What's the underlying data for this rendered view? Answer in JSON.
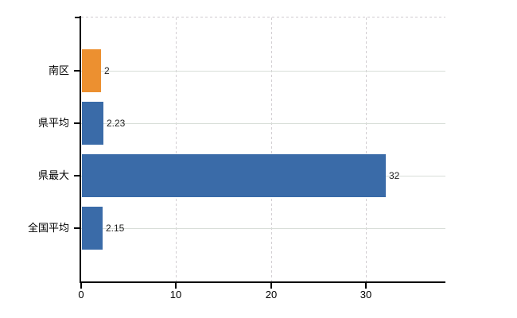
{
  "chart_data": {
    "type": "bar",
    "orientation": "horizontal",
    "title": "",
    "categories": [
      "南区",
      "県平均",
      "県最大",
      "全国平均"
    ],
    "values": [
      2,
      2.23,
      32,
      2.15
    ],
    "value_labels": [
      "2",
      "2.23",
      "32",
      "2.15"
    ],
    "point_colors": [
      "#EC9030",
      "#3A6BA8",
      "#3A6BA8",
      "#3A6BA8"
    ],
    "x_ticks": [
      "0",
      "10",
      "20",
      "30"
    ],
    "x_tick_values": [
      0,
      10,
      20,
      30
    ],
    "xlim": [
      0,
      38.4
    ],
    "grid": true,
    "legend": "none",
    "xlabel": "",
    "ylabel": ""
  },
  "colors": {
    "bar_blue": "#3A6BA8",
    "bar_orange": "#EC9030",
    "axis": "#000000",
    "grid_solid": "#d8ded8",
    "grid_dashed": "#d0ccd0",
    "value_label": "#1f1f1f",
    "background": "#ffffff"
  }
}
